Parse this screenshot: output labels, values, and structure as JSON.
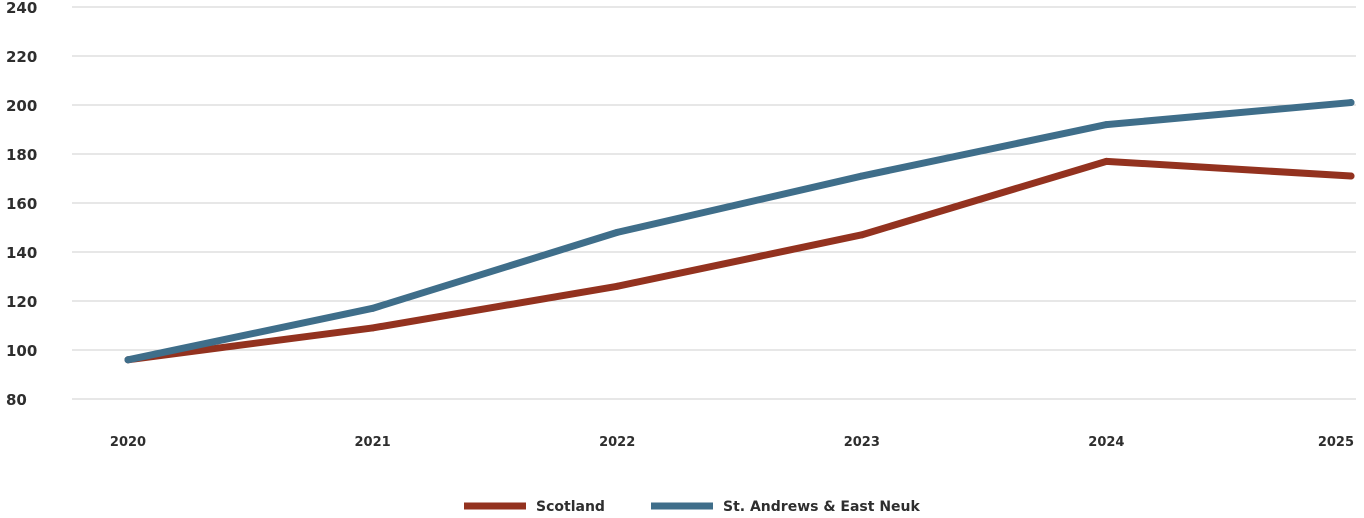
{
  "chart_data": {
    "type": "line",
    "x": [
      "2020",
      "2021",
      "2022",
      "2023",
      "2024",
      "2025"
    ],
    "ylim": [
      80,
      240
    ],
    "yticks": [
      80,
      100,
      120,
      140,
      160,
      180,
      200,
      220,
      240
    ],
    "grid": true,
    "legend_position": "bottom-center",
    "series": [
      {
        "name": "Scotland",
        "color": "#93321f",
        "values": [
          96,
          109,
          126,
          147,
          177,
          171
        ]
      },
      {
        "name": "St. Andrews & East Neuk",
        "color": "#3f6e8a",
        "values": [
          96,
          117,
          148,
          171,
          192,
          201
        ]
      }
    ]
  }
}
